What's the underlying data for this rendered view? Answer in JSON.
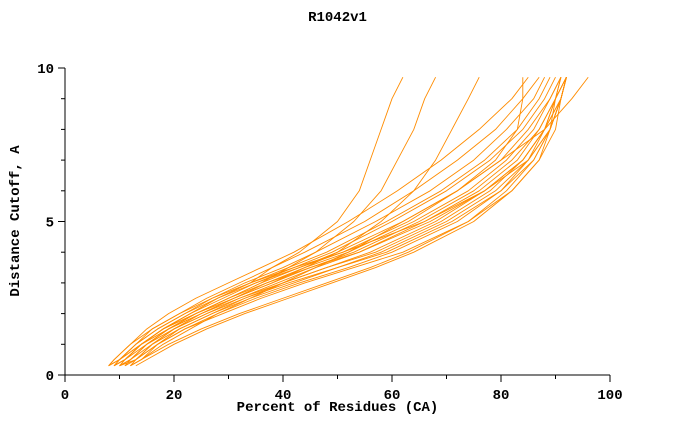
{
  "chart_data": {
    "type": "line",
    "title": "R1042v1",
    "xlabel": "Percent of Residues (CA)",
    "ylabel": "Distance Cutoff, A",
    "xlim": [
      0,
      100
    ],
    "ylim": [
      0,
      10
    ],
    "x_major_ticks": [
      0,
      20,
      40,
      60,
      80,
      100
    ],
    "x_minor_ticks": [
      10,
      30,
      50,
      70,
      90
    ],
    "y_major_ticks": [
      0,
      5,
      10
    ],
    "y_minor_ticks": [
      1,
      2,
      3,
      4,
      6,
      7,
      8,
      9
    ],
    "legend": "none",
    "grid": false,
    "line_color": "#ff8c00",
    "axis_color": "#000000",
    "y_samples": [
      0.3,
      0.5,
      1,
      1.5,
      2,
      2.5,
      3,
      3.5,
      4,
      5,
      6,
      7,
      8,
      9,
      9.7
    ],
    "series_x": [
      [
        9,
        11,
        14,
        18,
        23,
        28,
        34,
        38,
        43,
        50,
        54,
        56,
        58,
        60,
        62
      ],
      [
        10,
        12,
        15,
        19,
        24,
        30,
        36,
        41,
        46,
        53,
        58,
        61,
        64,
        66,
        68
      ],
      [
        8,
        10,
        14,
        18,
        24,
        31,
        38,
        44,
        50,
        58,
        64,
        68,
        71,
        74,
        76
      ],
      [
        12,
        14,
        18,
        23,
        28,
        34,
        40,
        46,
        52,
        62,
        72,
        80,
        88,
        93,
        96
      ],
      [
        8,
        9,
        12,
        15,
        19,
        24,
        30,
        36,
        42,
        52,
        61,
        69,
        76,
        82,
        85
      ],
      [
        8,
        10,
        13,
        16,
        21,
        26,
        32,
        38,
        44,
        55,
        64,
        72,
        79,
        84,
        87
      ],
      [
        9,
        10,
        13,
        17,
        22,
        27,
        33,
        40,
        46,
        57,
        67,
        75,
        81,
        86,
        88
      ],
      [
        9,
        11,
        14,
        18,
        23,
        28,
        34,
        41,
        48,
        59,
        69,
        77,
        83,
        87,
        89
      ],
      [
        10,
        11,
        14,
        18,
        23,
        29,
        35,
        42,
        49,
        60,
        70,
        78,
        84,
        88,
        90
      ],
      [
        10,
        12,
        15,
        19,
        24,
        30,
        36,
        43,
        50,
        62,
        72,
        80,
        85,
        89,
        91
      ],
      [
        11,
        12,
        15,
        19,
        25,
        31,
        37,
        44,
        52,
        64,
        74,
        81,
        86,
        89,
        91
      ],
      [
        11,
        13,
        16,
        20,
        25,
        31,
        38,
        45,
        53,
        65,
        75,
        82,
        87,
        90,
        92
      ],
      [
        12,
        13,
        16,
        20,
        26,
        32,
        39,
        46,
        54,
        66,
        76,
        83,
        87,
        90,
        92
      ],
      [
        12,
        14,
        17,
        21,
        27,
        33,
        40,
        48,
        56,
        68,
        77,
        84,
        88,
        90,
        92
      ],
      [
        9,
        11,
        14,
        18,
        24,
        30,
        37,
        45,
        54,
        67,
        77,
        84,
        88,
        91,
        92
      ],
      [
        10,
        12,
        16,
        21,
        27,
        34,
        42,
        50,
        58,
        70,
        79,
        85,
        88,
        91,
        92
      ],
      [
        11,
        13,
        17,
        22,
        28,
        35,
        43,
        52,
        60,
        72,
        80,
        85,
        89,
        91,
        92
      ],
      [
        8,
        10,
        14,
        19,
        25,
        32,
        40,
        48,
        57,
        69,
        78,
        84,
        88,
        90,
        91
      ],
      [
        9,
        11,
        15,
        20,
        26,
        33,
        41,
        50,
        59,
        71,
        80,
        86,
        89,
        91,
        92
      ],
      [
        10,
        13,
        17,
        22,
        29,
        36,
        44,
        53,
        62,
        74,
        82,
        87,
        90,
        91,
        92
      ],
      [
        13,
        15,
        20,
        26,
        33,
        41,
        49,
        57,
        64,
        75,
        82,
        87,
        89,
        91,
        92
      ],
      [
        12,
        14,
        19,
        25,
        32,
        40,
        48,
        56,
        63,
        74,
        81,
        86,
        89,
        90,
        91
      ],
      [
        8,
        9,
        12,
        16,
        21,
        27,
        34,
        42,
        51,
        66,
        77,
        85,
        89,
        91,
        92
      ],
      [
        9,
        10,
        13,
        17,
        22,
        28,
        35,
        43,
        51,
        63,
        72,
        79,
        83,
        84,
        84
      ]
    ]
  }
}
